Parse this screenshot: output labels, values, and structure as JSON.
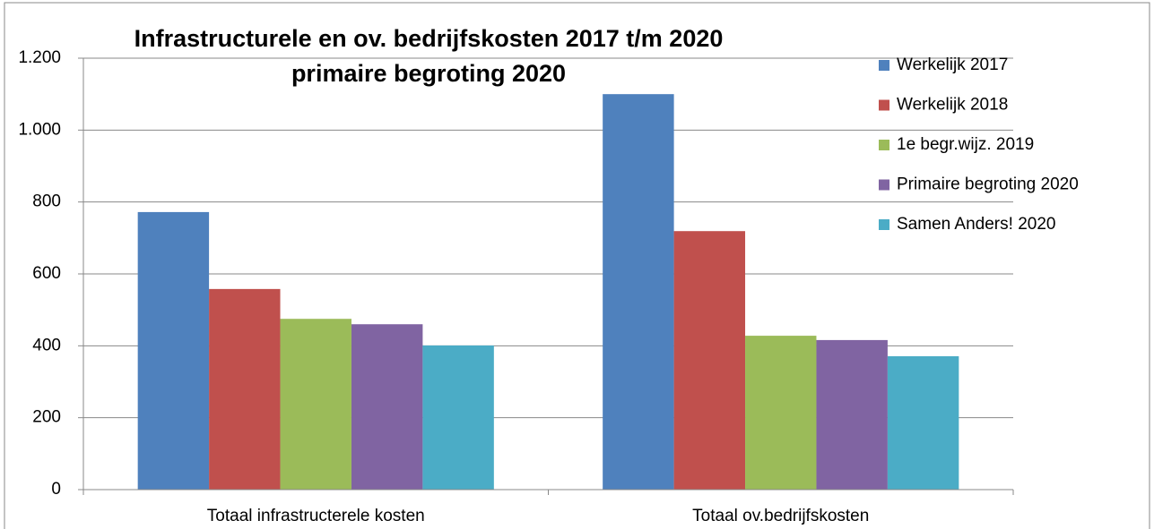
{
  "chart_data": {
    "type": "bar",
    "title": "Infrastructurele en ov. bedrijfskosten 2017 t/m 2020",
    "subtitle": "primaire begroting 2020",
    "categories": [
      "Totaal infrastructerele kosten",
      "Totaal ov.bedrijfskosten"
    ],
    "series": [
      {
        "name": "Werkelijk 2017",
        "color": "#4f81bd",
        "values": [
          772,
          1100
        ]
      },
      {
        "name": "Werkelijk 2018",
        "color": "#c0504d",
        "values": [
          558,
          719
        ]
      },
      {
        "name": "1e begr.wijz. 2019",
        "color": "#9bbb59",
        "values": [
          475,
          428
        ]
      },
      {
        "name": "Primaire begroting 2020",
        "color": "#8064a2",
        "values": [
          460,
          416
        ]
      },
      {
        "name": "Samen Anders! 2020",
        "color": "#4bacc6",
        "values": [
          401,
          371
        ]
      }
    ],
    "ylim": [
      0,
      1200
    ],
    "yticks": [
      0,
      200,
      400,
      600,
      800,
      {
        "value": 1000,
        "label": "1.000"
      },
      {
        "value": 1200,
        "label": "1.200"
      }
    ],
    "grid": true,
    "legend": "right"
  }
}
